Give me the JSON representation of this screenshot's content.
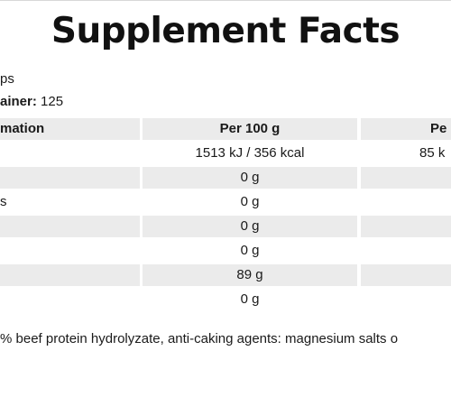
{
  "title": "Supplement Facts",
  "serving_line": "ps",
  "container_label": "ainer:",
  "container_value": "125",
  "table": {
    "headers": [
      "mation",
      "Per 100 g",
      "Pe"
    ],
    "rows": [
      {
        "label": "",
        "per100": "1513 kJ / 356 kcal",
        "perServing": "85 k",
        "shaded": false
      },
      {
        "label": "",
        "per100": "0 g",
        "perServing": "",
        "shaded": true
      },
      {
        "label": "s",
        "per100": "0 g",
        "perServing": "",
        "shaded": false
      },
      {
        "label": "",
        "per100": "0 g",
        "perServing": "",
        "shaded": true
      },
      {
        "label": "",
        "per100": "0 g",
        "perServing": "",
        "shaded": false
      },
      {
        "label": "",
        "per100": "89 g",
        "perServing": "",
        "shaded": true
      },
      {
        "label": "",
        "per100": "0 g",
        "perServing": "",
        "shaded": false
      }
    ]
  },
  "ingredients": "% beef protein hydrolyzate, anti-caking agents: magnesium salts o"
}
